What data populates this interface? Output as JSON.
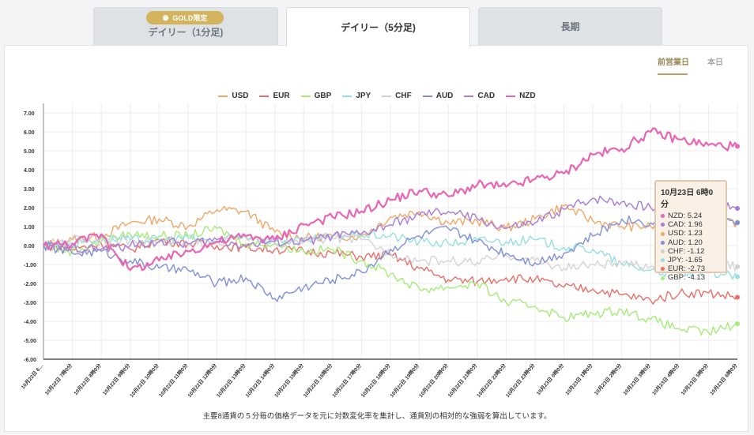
{
  "tabs": [
    {
      "label": "デイリー（1分足)",
      "active": false
    },
    {
      "label": "デイリー（5分足)",
      "active": true
    },
    {
      "label": "長期",
      "active": false
    }
  ],
  "gold_badge": "GOLD限定",
  "subtabs": [
    {
      "label": "前営業日",
      "active": true
    },
    {
      "label": "本日",
      "active": false
    }
  ],
  "footnote": "主要8通貨の５分毎の価格データを元に対数変化率を集計し、通貨別の相対的な強弱を算出しています。",
  "tooltip": {
    "title": "10月23日 6時0分",
    "rows": [
      {
        "label": "NZD: 5.24",
        "color": "#e866b3"
      },
      {
        "label": "CAD: 1.96",
        "color": "#a77bd6"
      },
      {
        "label": "USD: 1.23",
        "color": "#f0a868"
      },
      {
        "label": "AUD: 1.20",
        "color": "#8090d8"
      },
      {
        "label": "CHF: -1.12",
        "color": "#cfcfcf"
      },
      {
        "label": "JPY: -1.65",
        "color": "#96e0e0"
      },
      {
        "label": "EUR: -2.73",
        "color": "#e8706a"
      },
      {
        "label": "GBP: -4.13",
        "color": "#a6ec7a"
      }
    ]
  },
  "chart_data": {
    "type": "line",
    "ylim": [
      -6,
      7.5
    ],
    "yticks": [
      "7.00",
      "6.00",
      "5.00",
      "4.00",
      "3.00",
      "2.00",
      "1.00",
      "0.00",
      "-1.00",
      "-2.00",
      "-3.00",
      "-4.00",
      "-5.00",
      "-6.00"
    ],
    "xticks": [
      "10月22日 6…",
      "10月22日 7時0分",
      "10月22日 8時0分",
      "10月22日 9時0分",
      "10月22日 10時0分",
      "10月22日 11時0分",
      "10月22日 12時0分",
      "10月22日 13時0分",
      "10月22日 14時0分",
      "10月22日 15時0分",
      "10月22日 16時0分",
      "10月22日 17時0分",
      "10月22日 18時0分",
      "10月22日 19時0分",
      "10月22日 20時0分",
      "10月22日 21時0分",
      "10月22日 22時0分",
      "10月22日 23時0分",
      "10月23日 0時0分",
      "10月23日 1時0分",
      "10月23日 2時0分",
      "10月23日 3時0分",
      "10月23日 4時0分",
      "10月23日 5時0分",
      "10月23日 6時0分"
    ],
    "grid": true,
    "legend_position": "top",
    "series": [
      {
        "name": "USD",
        "color": "#f0a868",
        "values": [
          0,
          0.3,
          0.5,
          1.2,
          1.4,
          1.0,
          1.9,
          1.8,
          0.7,
          0.4,
          0.5,
          0.5,
          1.5,
          1.8,
          1.2,
          1.3,
          0.9,
          1.4,
          2.1,
          1.3,
          1.0,
          1.0,
          1.2,
          1.2,
          1.23
        ]
      },
      {
        "name": "EUR",
        "color": "#e8706a",
        "values": [
          0,
          -0.2,
          0.1,
          -0.2,
          0.3,
          0.1,
          0.0,
          -0.1,
          -0.2,
          -0.3,
          -0.4,
          -0.6,
          -0.5,
          -1.2,
          -1.8,
          -1.9,
          -1.7,
          -1.8,
          -2.2,
          -2.3,
          -2.6,
          -2.9,
          -2.5,
          -2.5,
          -2.73
        ]
      },
      {
        "name": "GBP",
        "color": "#a6ec7a",
        "values": [
          0,
          -0.3,
          0.2,
          0.6,
          0.5,
          0.5,
          0.9,
          0.1,
          0.1,
          -0.3,
          -0.2,
          -0.8,
          -1.5,
          -2.3,
          -2.2,
          -2.0,
          -3.0,
          -3.2,
          -3.8,
          -3.6,
          -3.4,
          -3.9,
          -4.4,
          -4.6,
          -4.13
        ]
      },
      {
        "name": "JPY",
        "color": "#96e0e0",
        "values": [
          0,
          0.1,
          0.4,
          0.3,
          0.3,
          0.4,
          0.2,
          0.5,
          0.3,
          0.2,
          0.5,
          0.6,
          0.5,
          0.2,
          0.1,
          0.3,
          0.2,
          0.3,
          -0.1,
          -0.2,
          -1.0,
          -1.3,
          -1.5,
          -1.4,
          -1.65
        ]
      },
      {
        "name": "CHF",
        "color": "#cfcfcf",
        "values": [
          0,
          0.4,
          0.2,
          0.3,
          0.2,
          0.0,
          0.2,
          0.4,
          0.1,
          0.2,
          0.4,
          0.3,
          -0.4,
          -0.8,
          -0.8,
          -0.9,
          -0.5,
          -0.8,
          -1.2,
          -1.0,
          -1.0,
          -1.1,
          -1.1,
          -1.0,
          -1.12
        ]
      },
      {
        "name": "AUD",
        "color": "#8090d8",
        "values": [
          0,
          -0.4,
          -0.3,
          -0.8,
          -1.2,
          -1.3,
          -2.0,
          -1.7,
          -2.8,
          -2.2,
          -1.8,
          -1.4,
          -0.2,
          0.5,
          0.9,
          0.2,
          -0.4,
          -0.9,
          -0.4,
          0.5,
          1.4,
          1.2,
          1.1,
          1.1,
          1.2
        ]
      },
      {
        "name": "CAD",
        "color": "#a77bd6",
        "values": [
          0,
          -0.1,
          -0.2,
          0.0,
          0.2,
          0.1,
          0.3,
          0.0,
          0.2,
          0.2,
          0.5,
          0.6,
          1.1,
          1.6,
          1.8,
          1.4,
          0.9,
          1.2,
          1.9,
          2.5,
          2.3,
          2.0,
          2.2,
          2.1,
          1.96
        ]
      },
      {
        "name": "NZD",
        "color": "#e866b3",
        "values": [
          0,
          0.1,
          0.6,
          -1.3,
          -0.8,
          -0.3,
          0.2,
          0.5,
          0.3,
          1.1,
          1.5,
          1.8,
          2.4,
          2.9,
          2.6,
          3.2,
          3.1,
          3.5,
          3.8,
          4.8,
          5.1,
          6.0,
          5.6,
          5.3,
          5.24
        ]
      }
    ]
  }
}
